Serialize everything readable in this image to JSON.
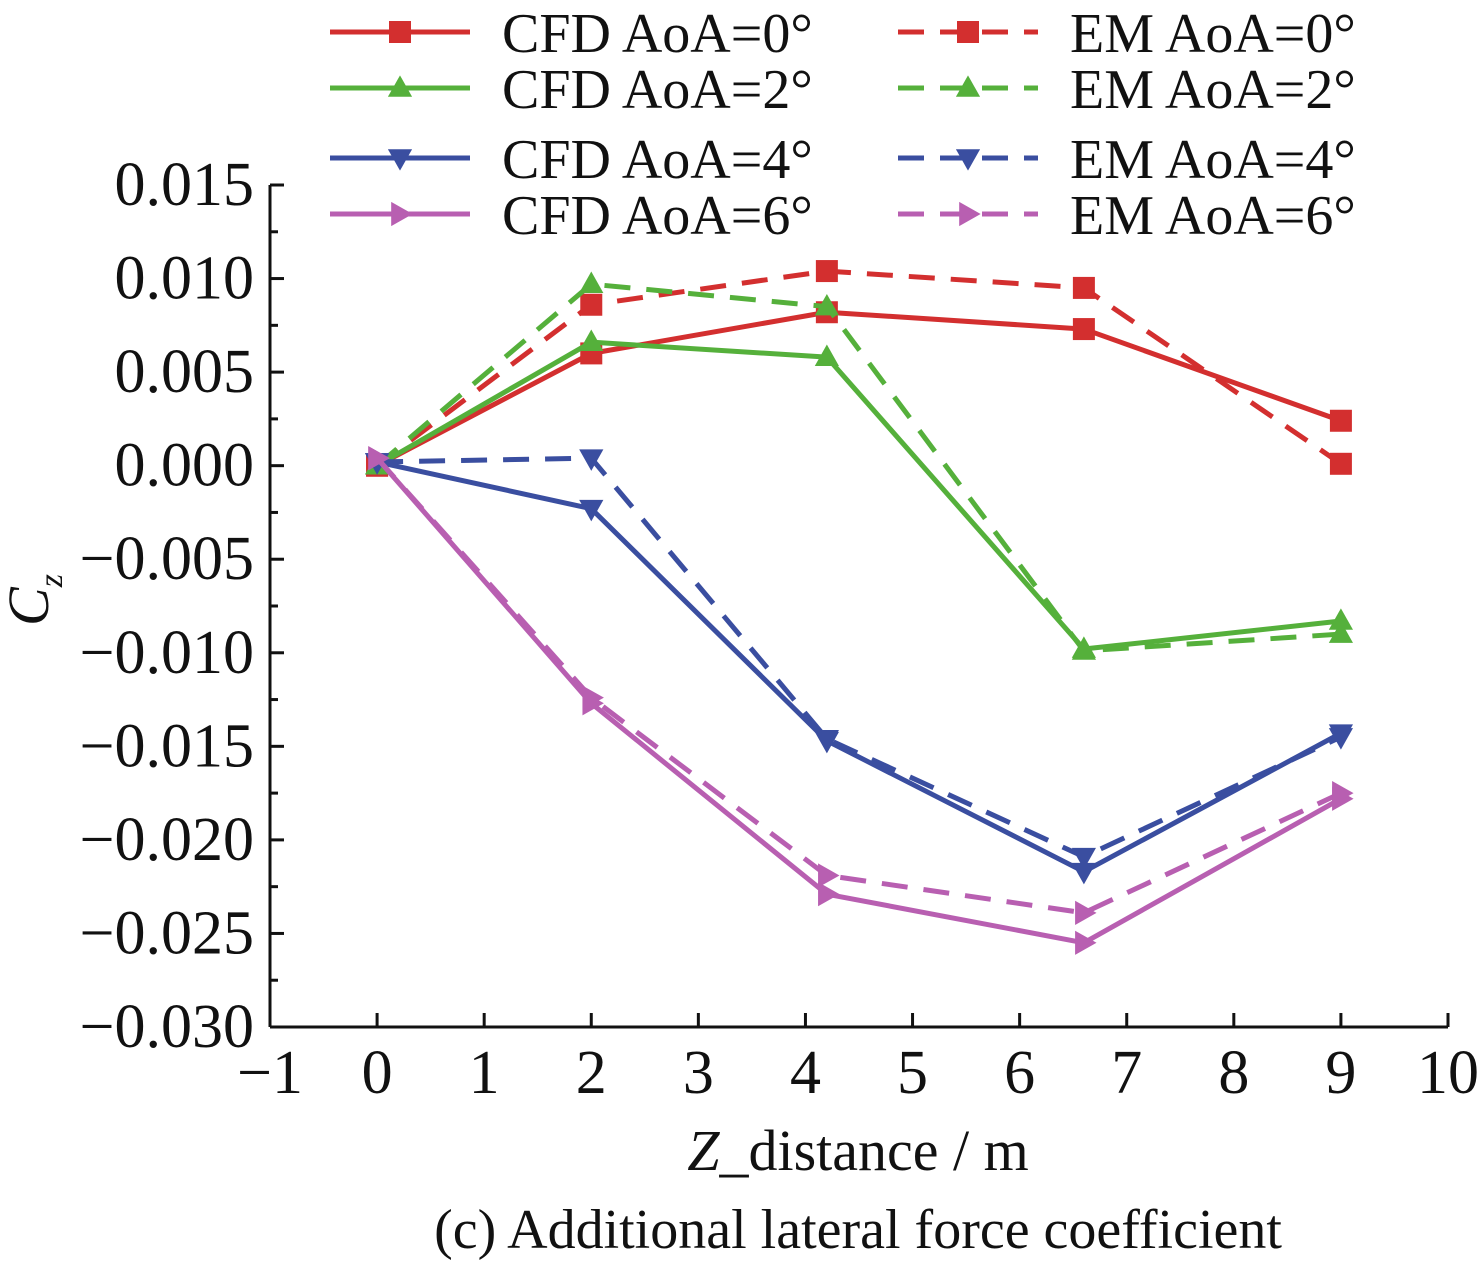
{
  "chart_data": {
    "type": "line",
    "caption": "(c) Additional lateral force coefficient",
    "xlabel": {
      "var": "Z",
      "rest": "_distance / m"
    },
    "ylabel": {
      "var": "C",
      "sub": "z"
    },
    "xlim": [
      -1,
      10
    ],
    "ylim": [
      -0.03,
      0.015
    ],
    "xticks": [
      -1,
      0,
      1,
      2,
      3,
      4,
      5,
      6,
      7,
      8,
      9,
      10
    ],
    "xtick_labels": [
      "−1",
      "0",
      "1",
      "2",
      "3",
      "4",
      "5",
      "6",
      "7",
      "8",
      "9",
      "10"
    ],
    "yticks": [
      0.015,
      0.01,
      0.005,
      0.0,
      -0.005,
      -0.01,
      -0.015,
      -0.02,
      -0.025,
      -0.03
    ],
    "ytick_labels": [
      "0.015",
      "0.010",
      "0.005",
      "0.000",
      "−0.005",
      "−0.010",
      "−0.015",
      "−0.020",
      "−0.025",
      "−0.030"
    ],
    "grid": false,
    "legend_position": "top",
    "x": [
      0,
      2,
      4.2,
      6.6,
      9
    ],
    "series": [
      {
        "name": "CFD AoA=0°",
        "color": "#d32f2f",
        "dash": "solid",
        "marker": "square",
        "values": [
          0.0,
          0.006,
          0.0082,
          0.0073,
          0.0024
        ]
      },
      {
        "name": "EM AoA=0°",
        "color": "#d32f2f",
        "dash": "dashed",
        "marker": "square",
        "values": [
          0.0,
          0.0086,
          0.0104,
          0.0095,
          0.0001
        ]
      },
      {
        "name": "CFD AoA=2°",
        "color": "#55b03b",
        "dash": "solid",
        "marker": "triangle-up",
        "values": [
          0.0,
          0.0066,
          0.0058,
          -0.0098,
          -0.0083
        ]
      },
      {
        "name": "EM AoA=2°",
        "color": "#55b03b",
        "dash": "dashed",
        "marker": "triangle-up",
        "values": [
          0.0,
          0.0097,
          0.0085,
          -0.0099,
          -0.009
        ]
      },
      {
        "name": "CFD AoA=4°",
        "color": "#3a4ea0",
        "dash": "solid",
        "marker": "triangle-down",
        "values": [
          0.0002,
          -0.0023,
          -0.0147,
          -0.0217,
          -0.0143
        ]
      },
      {
        "name": "EM AoA=4°",
        "color": "#3a4ea0",
        "dash": "dashed",
        "marker": "triangle-down",
        "values": [
          0.0002,
          0.0004,
          -0.0146,
          -0.0209,
          -0.0145
        ]
      },
      {
        "name": "CFD AoA=6°",
        "color": "#b85fb1",
        "dash": "solid",
        "marker": "triangle-right",
        "values": [
          0.0004,
          -0.0127,
          -0.0229,
          -0.0255,
          -0.0178
        ]
      },
      {
        "name": "EM AoA=6°",
        "color": "#b85fb1",
        "dash": "dashed",
        "marker": "triangle-right",
        "values": [
          0.0004,
          -0.0124,
          -0.0219,
          -0.0239,
          -0.0175
        ]
      }
    ]
  }
}
